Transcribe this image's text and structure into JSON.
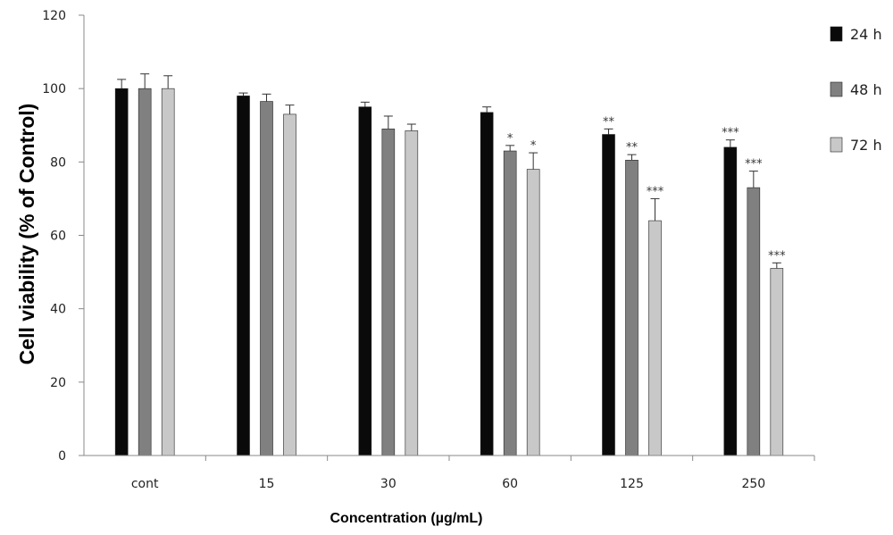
{
  "chart_data": {
    "type": "bar",
    "ylabel": "Cell viability  (% of Control)",
    "xlabel": "Concentration (µg/mL)",
    "categories": [
      "cont",
      "15",
      "30",
      "60",
      "125",
      "250"
    ],
    "ylim": [
      0,
      120
    ],
    "yticks": [
      0,
      20,
      40,
      60,
      80,
      100,
      120
    ],
    "grid": false,
    "legend_position": "right",
    "series": [
      {
        "name": "24 h",
        "color": "#0a0a0a",
        "values": [
          100,
          98,
          95,
          93.5,
          87.5,
          84
        ],
        "errors": [
          2.5,
          0.8,
          1.3,
          1.5,
          1.5,
          2.0
        ],
        "significance": [
          "",
          "",
          "",
          "",
          "**",
          "***"
        ]
      },
      {
        "name": "48 h",
        "color": "#808080",
        "values": [
          100,
          96.5,
          89,
          83,
          80.5,
          73
        ],
        "errors": [
          4.0,
          2.0,
          3.5,
          1.5,
          1.5,
          4.5
        ],
        "significance": [
          "",
          "",
          "",
          "*",
          "**",
          "***"
        ]
      },
      {
        "name": "72 h",
        "color": "#c8c8c8",
        "values": [
          100,
          93,
          88.5,
          78,
          64,
          51
        ],
        "errors": [
          3.5,
          2.5,
          1.8,
          4.5,
          6.0,
          1.5
        ],
        "significance": [
          "",
          "",
          "",
          "*",
          "***",
          "***"
        ]
      }
    ]
  }
}
